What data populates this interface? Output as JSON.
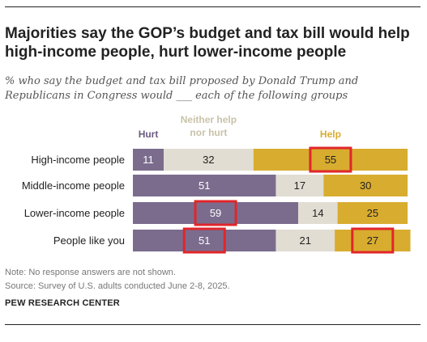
{
  "header": {
    "title": "Majorities say the GOP’s budget and tax bill would help high-income people, hurt lower-income people",
    "subtitle_line1": "% who say the budget and tax bill proposed by Donald Trump and",
    "subtitle_line2": "Republicans in Congress would ___ each of the following groups"
  },
  "footer": {
    "note": "Note: No response answers are not shown.",
    "source": "Source: Survey of U.S. adults conducted June 2-8, 2025.",
    "brand": "PEW RESEARCH CENTER"
  },
  "colors": {
    "hurt": "#7b6c8e",
    "neither": "#e2ddd3",
    "help": "#d8ac2f",
    "highlight": "#e0262a",
    "hurt_header": "#6b5d7e",
    "neither_header": "#c9c2a9",
    "help_header": "#d8ac2f"
  },
  "chart_data": {
    "type": "bar",
    "stacked": true,
    "orientation": "horizontal",
    "categories": [
      "High-income people",
      "Middle-income people",
      "Lower-income people",
      "People like you"
    ],
    "series": [
      {
        "name": "Hurt",
        "values": [
          11,
          51,
          59,
          51
        ]
      },
      {
        "name": "Neither help nor hurt",
        "values": [
          32,
          17,
          14,
          21
        ]
      },
      {
        "name": "Help",
        "values": [
          55,
          30,
          25,
          27
        ]
      }
    ],
    "series_header_lines": [
      [
        "Hurt"
      ],
      [
        "Neither help",
        "nor hurt"
      ],
      [
        "Help"
      ]
    ],
    "highlighted": [
      {
        "category": "High-income people",
        "series": "Help"
      },
      {
        "category": "Lower-income people",
        "series": "Hurt"
      },
      {
        "category": "People like you",
        "series": "Hurt"
      },
      {
        "category": "People like you",
        "series": "Help"
      }
    ],
    "xlim": [
      0,
      100
    ]
  }
}
